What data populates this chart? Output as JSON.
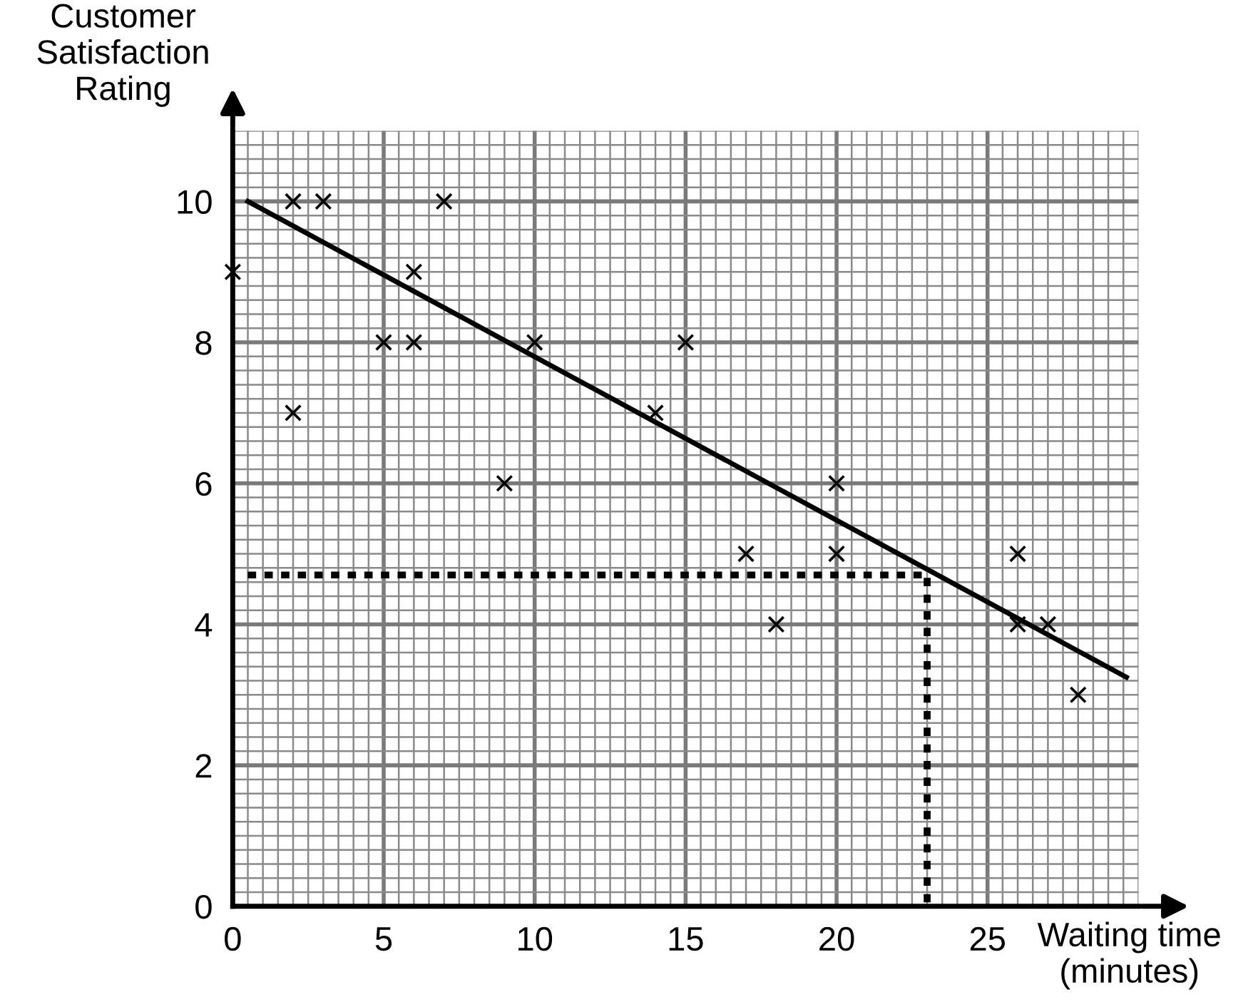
{
  "chart_data": {
    "type": "scatter",
    "xlabel": "Waiting time\n(minutes)",
    "ylabel": "Customer\nSatisfaction\nRating",
    "xlim": [
      0,
      30
    ],
    "ylim": [
      0,
      11
    ],
    "xticks": [
      0,
      5,
      10,
      15,
      20,
      25
    ],
    "yticks": [
      0,
      2,
      4,
      6,
      8,
      10
    ],
    "grid": true,
    "series": [
      {
        "color": "#000000",
        "marker": "cross",
        "x": [
          0,
          2,
          3,
          7,
          6,
          5,
          6,
          10,
          2,
          14,
          15,
          9,
          17,
          20,
          20,
          18,
          26,
          26,
          27,
          28
        ],
        "values": [
          9,
          10,
          10,
          10,
          9,
          8,
          8,
          8,
          7,
          7,
          8,
          6,
          5,
          6,
          5,
          4,
          5,
          4,
          4,
          3
        ]
      },
      {
        "type": "line",
        "color": "#000000",
        "line_style": "solid",
        "marker": "none",
        "x": [
          0.5,
          29.6
        ],
        "values": [
          10,
          3.25
        ]
      },
      {
        "type": "line",
        "color": "#000000",
        "line_style": "dotted",
        "marker": "none",
        "x": [
          0.5,
          23,
          23
        ],
        "values": [
          4.7,
          4.7,
          0
        ]
      }
    ]
  }
}
